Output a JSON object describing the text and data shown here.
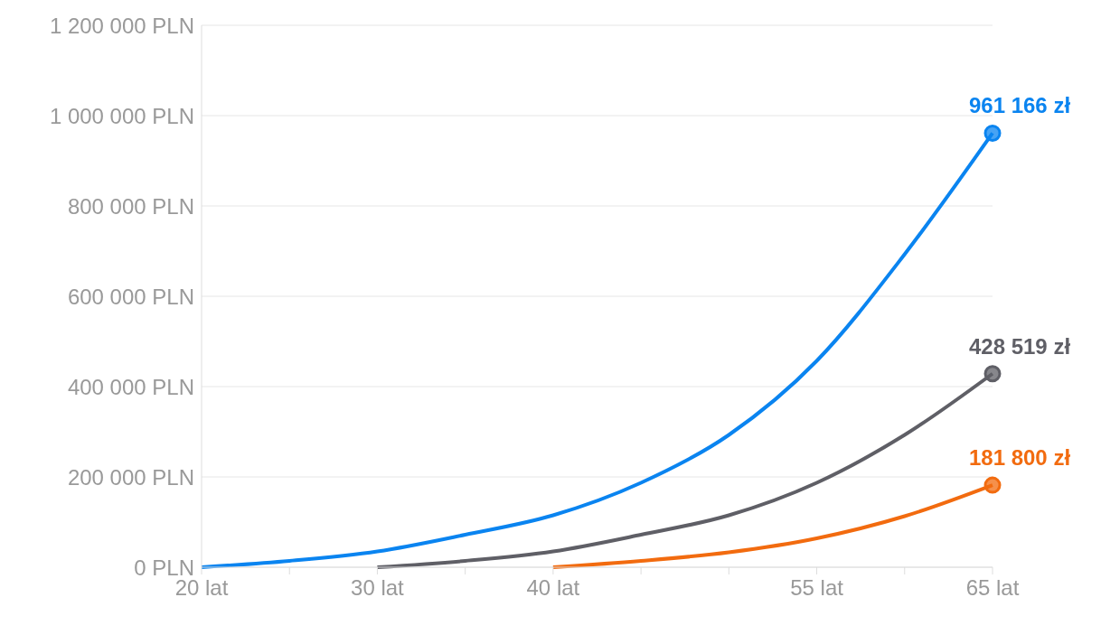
{
  "chart_data": {
    "type": "line",
    "series": [
      {
        "color": "#0a84f0",
        "x": [
          20,
          25,
          30,
          35,
          40,
          45,
          50,
          55,
          60,
          65
        ],
        "values": [
          0,
          14000,
          35000,
          72000,
          115000,
          187000,
          293000,
          457000,
          693000,
          961166
        ],
        "value_labels": [
          null,
          null,
          null,
          null,
          null,
          null,
          null,
          null,
          null,
          "961 166 zł"
        ]
      },
      {
        "color": "#5f5f66",
        "x": [
          30,
          35,
          40,
          45,
          50,
          55,
          60,
          65
        ],
        "values": [
          0,
          14000,
          35000,
          72000,
          115000,
          187000,
          293000,
          428519
        ],
        "value_labels": [
          null,
          null,
          null,
          null,
          null,
          null,
          null,
          "428 519 zł"
        ]
      },
      {
        "color": "#f26b0f",
        "x": [
          40,
          45,
          50,
          55,
          60,
          65
        ],
        "values": [
          0,
          14000,
          33000,
          64000,
          113000,
          181800
        ],
        "value_labels": [
          null,
          null,
          null,
          null,
          null,
          "181 800 zł"
        ]
      }
    ],
    "xlim": [
      20,
      65
    ],
    "xticks": [
      {
        "value": 20,
        "label": "20 lat"
      },
      {
        "value": 25,
        "label": null
      },
      {
        "value": 30,
        "label": "30 lat"
      },
      {
        "value": 35,
        "label": null
      },
      {
        "value": 40,
        "label": "40 lat"
      },
      {
        "value": 45,
        "label": null
      },
      {
        "value": 50,
        "label": null
      },
      {
        "value": 55,
        "label": "55 lat"
      },
      {
        "value": 60,
        "label": null
      },
      {
        "value": 65,
        "label": "65 lat"
      }
    ],
    "ylim": [
      0,
      1200000
    ],
    "yticks": [
      {
        "value": 0,
        "label": "0 PLN"
      },
      {
        "value": 200000,
        "label": "200 000 PLN"
      },
      {
        "value": 400000,
        "label": "400 000 PLN"
      },
      {
        "value": 600000,
        "label": "600 000 PLN"
      },
      {
        "value": 800000,
        "label": "800 000 PLN"
      },
      {
        "value": 1000000,
        "label": "1 000 000 PLN"
      },
      {
        "value": 1200000,
        "label": "1 200 000 PLN"
      }
    ],
    "grid": "y",
    "legend": false,
    "line_style": "solid"
  }
}
